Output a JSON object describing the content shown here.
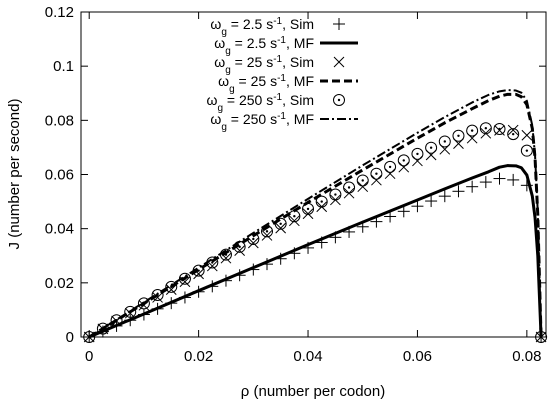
{
  "chart_data": {
    "type": "line",
    "xlabel": "ρ (number per codon)",
    "ylabel": "J (number per second)",
    "xlim": [
      -0.0015,
      0.0835
    ],
    "ylim": [
      0,
      0.12
    ],
    "xticks": [
      0,
      0.02,
      0.04,
      0.06,
      0.08
    ],
    "xtick_labels": [
      "0",
      "0.02",
      "0.04",
      "0.06",
      "0.08"
    ],
    "yticks": [
      0,
      0.02,
      0.04,
      0.06,
      0.08,
      0.1,
      0.12
    ],
    "ytick_labels": [
      "0",
      "0.02",
      "0.04",
      "0.06",
      "0.08",
      "0.1",
      "0.12"
    ],
    "grid": false,
    "legend_position": "top-left",
    "series": [
      {
        "name_pre": "ω",
        "name_sub": "g",
        "name_mid": " = 2.5 s",
        "name_sup": "-1",
        "name_post": ", Sim",
        "style": "scatter",
        "marker": "plus",
        "x": [
          0,
          0.0025,
          0.005,
          0.0075,
          0.01,
          0.0125,
          0.015,
          0.0175,
          0.02,
          0.0225,
          0.025,
          0.0275,
          0.03,
          0.0325,
          0.035,
          0.0375,
          0.04,
          0.0425,
          0.045,
          0.0475,
          0.05,
          0.0525,
          0.055,
          0.0575,
          0.06,
          0.0625,
          0.065,
          0.0675,
          0.07,
          0.0725,
          0.075,
          0.0775,
          0.08,
          0.0826
        ],
        "y": [
          0,
          0.002,
          0.0041,
          0.0062,
          0.0083,
          0.0104,
          0.0125,
          0.0146,
          0.0167,
          0.0187,
          0.0208,
          0.0228,
          0.0249,
          0.0269,
          0.0289,
          0.0309,
          0.0329,
          0.0349,
          0.0368,
          0.0388,
          0.0407,
          0.0426,
          0.0445,
          0.0464,
          0.0483,
          0.0502,
          0.052,
          0.0538,
          0.0555,
          0.0572,
          0.0585,
          0.058,
          0.056,
          0
        ]
      },
      {
        "name_pre": "ω",
        "name_sub": "g",
        "name_mid": " = 2.5 s",
        "name_sup": "-1",
        "name_post": ", MF",
        "style": "solid",
        "width": 3,
        "x": [
          0,
          0.01,
          0.02,
          0.03,
          0.04,
          0.05,
          0.06,
          0.065,
          0.07,
          0.073,
          0.075,
          0.0765,
          0.078,
          0.079,
          0.08,
          0.081,
          0.0815,
          0.082,
          0.0823,
          0.0826
        ],
        "y": [
          0,
          0.0085,
          0.0171,
          0.0256,
          0.0341,
          0.0424,
          0.0506,
          0.0547,
          0.0587,
          0.061,
          0.0627,
          0.0633,
          0.0632,
          0.0625,
          0.0598,
          0.052,
          0.044,
          0.03,
          0.015,
          0
        ]
      },
      {
        "name_pre": "ω",
        "name_sub": "g",
        "name_mid": " = 25 s",
        "name_sup": "-1",
        "name_post": ", Sim",
        "style": "scatter",
        "marker": "cross",
        "x": [
          0,
          0.0025,
          0.005,
          0.0075,
          0.01,
          0.0125,
          0.015,
          0.0175,
          0.02,
          0.0225,
          0.025,
          0.0275,
          0.03,
          0.0325,
          0.035,
          0.0375,
          0.04,
          0.0425,
          0.045,
          0.0475,
          0.05,
          0.0525,
          0.055,
          0.0575,
          0.06,
          0.0625,
          0.065,
          0.0675,
          0.07,
          0.0725,
          0.075,
          0.0775,
          0.08,
          0.0826
        ],
        "y": [
          0,
          0.003,
          0.0059,
          0.0088,
          0.0117,
          0.0146,
          0.0175,
          0.0204,
          0.0233,
          0.0262,
          0.0291,
          0.0319,
          0.0347,
          0.0375,
          0.0402,
          0.0429,
          0.0455,
          0.0481,
          0.0506,
          0.0531,
          0.0555,
          0.0579,
          0.0603,
          0.0627,
          0.065,
          0.0672,
          0.0693,
          0.0714,
          0.0734,
          0.0752,
          0.0763,
          0.0764,
          0.0745,
          0
        ]
      },
      {
        "name_pre": "ω",
        "name_sub": "g",
        "name_mid": " = 25 s",
        "name_sup": "-1",
        "name_post": ", MF",
        "style": "dashed",
        "width": 3,
        "x": [
          0,
          0.01,
          0.02,
          0.03,
          0.04,
          0.05,
          0.06,
          0.065,
          0.07,
          0.073,
          0.075,
          0.0765,
          0.078,
          0.079,
          0.08,
          0.081,
          0.0815,
          0.082,
          0.0823,
          0.0826
        ],
        "y": [
          0,
          0.0124,
          0.0249,
          0.0374,
          0.0497,
          0.0617,
          0.0734,
          0.0791,
          0.0843,
          0.0873,
          0.0889,
          0.0896,
          0.0896,
          0.0887,
          0.0858,
          0.077,
          0.066,
          0.045,
          0.022,
          0
        ]
      },
      {
        "name_pre": "ω",
        "name_sub": "g",
        "name_mid": " = 250 s",
        "name_sup": "-1",
        "name_post": ", Sim",
        "style": "scatter",
        "marker": "circle-dot",
        "x": [
          0,
          0.0025,
          0.005,
          0.0075,
          0.01,
          0.0125,
          0.015,
          0.0175,
          0.02,
          0.0225,
          0.025,
          0.0275,
          0.03,
          0.0325,
          0.035,
          0.0375,
          0.04,
          0.0425,
          0.045,
          0.0475,
          0.05,
          0.0525,
          0.055,
          0.0575,
          0.06,
          0.0625,
          0.065,
          0.0675,
          0.07,
          0.0725,
          0.075,
          0.0775,
          0.08,
          0.0826
        ],
        "y": [
          0,
          0.0031,
          0.0062,
          0.0093,
          0.0124,
          0.0155,
          0.0185,
          0.0215,
          0.0245,
          0.0275,
          0.0304,
          0.0333,
          0.0362,
          0.039,
          0.0418,
          0.0446,
          0.0473,
          0.05,
          0.0526,
          0.0552,
          0.0578,
          0.0603,
          0.0628,
          0.0652,
          0.0676,
          0.0699,
          0.0722,
          0.0743,
          0.0762,
          0.0771,
          0.0768,
          0.0749,
          0.0688,
          0
        ]
      },
      {
        "name_pre": "ω",
        "name_sub": "g",
        "name_mid": " = 250 s",
        "name_sup": "-1",
        "name_post": ", MF",
        "style": "dashdot",
        "width": 2,
        "x": [
          0,
          0.01,
          0.02,
          0.03,
          0.04,
          0.05,
          0.06,
          0.065,
          0.07,
          0.073,
          0.075,
          0.0765,
          0.078,
          0.079,
          0.08,
          0.081,
          0.0815,
          0.082,
          0.0823,
          0.0826
        ],
        "y": [
          0,
          0.0128,
          0.0256,
          0.0384,
          0.051,
          0.0634,
          0.0754,
          0.0812,
          0.0866,
          0.0894,
          0.0907,
          0.0912,
          0.091,
          0.0902,
          0.0872,
          0.078,
          0.067,
          0.046,
          0.023,
          0
        ]
      }
    ]
  }
}
